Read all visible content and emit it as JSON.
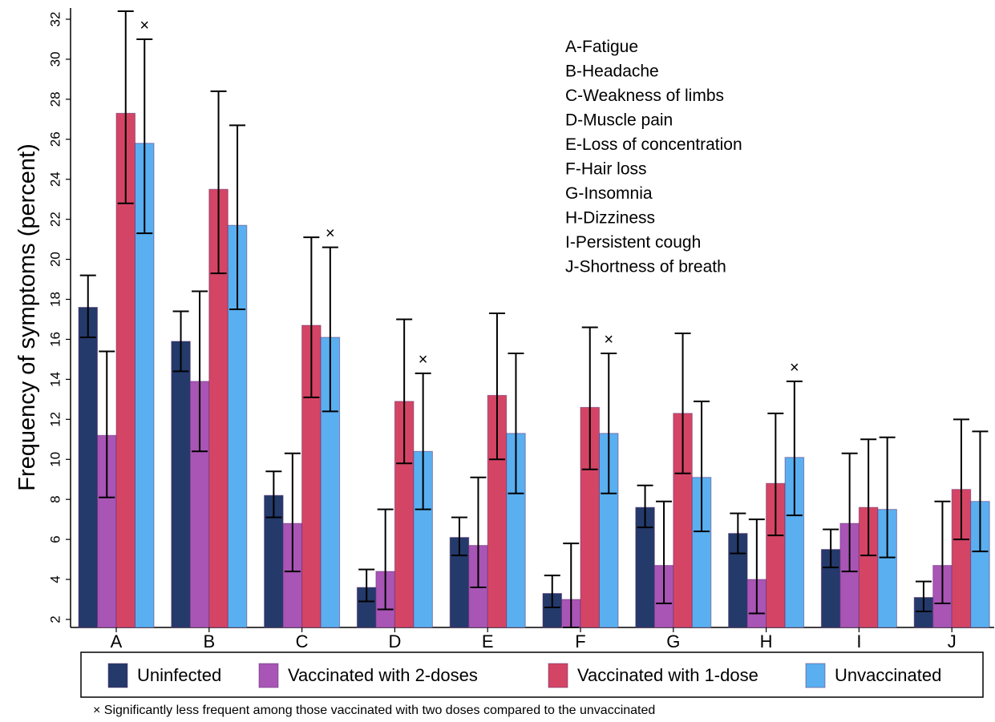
{
  "chart_data": {
    "type": "bar",
    "title": "",
    "xlabel": "",
    "ylabel": "Frequency of symptoms (percent)",
    "ylim": [
      1.5,
      32.5
    ],
    "yticks": [
      2,
      4,
      6,
      8,
      10,
      12,
      14,
      16,
      18,
      20,
      22,
      24,
      26,
      28,
      30,
      32
    ],
    "grid": false,
    "legend_position": "bottom",
    "categories": [
      "A",
      "B",
      "C",
      "D",
      "E",
      "F",
      "G",
      "H",
      "I",
      "J"
    ],
    "series": [
      {
        "name": "Uninfected",
        "color": "#243a6b",
        "values": [
          17.6,
          15.9,
          8.2,
          3.6,
          6.1,
          3.3,
          7.6,
          6.3,
          5.5,
          3.1
        ],
        "ci_low": [
          16.1,
          14.4,
          7.1,
          2.9,
          5.2,
          2.6,
          6.6,
          5.3,
          4.6,
          2.4
        ],
        "ci_high": [
          19.2,
          17.4,
          9.4,
          4.5,
          7.1,
          4.2,
          8.7,
          7.3,
          6.5,
          3.9
        ]
      },
      {
        "name": "Vaccinated with 2-doses",
        "color": "#a855b5",
        "values": [
          11.2,
          13.9,
          6.8,
          4.4,
          5.7,
          3.0,
          4.7,
          4.0,
          6.8,
          4.7
        ],
        "ci_low": [
          8.1,
          10.4,
          4.4,
          2.5,
          3.6,
          1.6,
          2.8,
          2.3,
          4.4,
          2.8
        ],
        "ci_high": [
          15.4,
          18.4,
          10.3,
          7.5,
          9.1,
          5.8,
          7.9,
          7.0,
          10.3,
          7.9
        ]
      },
      {
        "name": "Vaccinated with 1-dose",
        "color": "#d44565",
        "values": [
          27.3,
          23.5,
          16.7,
          12.9,
          13.2,
          12.6,
          12.3,
          8.8,
          7.6,
          8.5
        ],
        "ci_low": [
          22.8,
          19.3,
          13.1,
          9.8,
          10.0,
          9.5,
          9.3,
          6.2,
          5.2,
          6.0
        ],
        "ci_high": [
          32.4,
          28.4,
          21.1,
          17.0,
          17.3,
          16.6,
          16.3,
          12.3,
          11.0,
          12.0
        ]
      },
      {
        "name": "Unvaccinated",
        "color": "#5aaff0",
        "values": [
          25.8,
          21.7,
          16.1,
          10.4,
          11.3,
          11.3,
          9.1,
          10.1,
          7.5,
          7.9
        ],
        "ci_low": [
          21.3,
          17.5,
          12.4,
          7.5,
          8.3,
          8.3,
          6.4,
          7.2,
          5.1,
          5.4
        ],
        "ci_high": [
          31.0,
          26.7,
          20.6,
          14.3,
          15.3,
          15.3,
          12.9,
          13.9,
          11.1,
          11.4
        ]
      }
    ],
    "significance_markers": [
      {
        "category": "A",
        "symbol": "×"
      },
      {
        "category": "C",
        "symbol": "×"
      },
      {
        "category": "D",
        "symbol": "×"
      },
      {
        "category": "F",
        "symbol": "×"
      },
      {
        "category": "H",
        "symbol": "×"
      }
    ],
    "key": [
      "A-Fatigue",
      "B-Headache",
      "C-Weakness of limbs",
      "D-Muscle pain",
      "E-Loss of concentration",
      "F-Hair loss",
      "G-Insomnia",
      "H-Dizziness",
      "I-Persistent cough",
      "J-Shortness of breath"
    ],
    "footnote": "× Significantly less frequent among those vaccinated with two doses compared to the unvaccinated"
  }
}
